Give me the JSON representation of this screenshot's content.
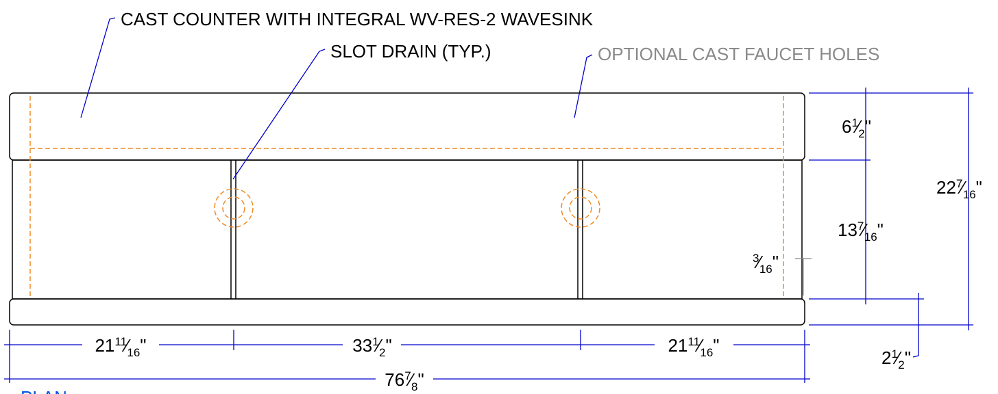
{
  "callouts": {
    "counter": "CAST COUNTER WITH INTEGRAL WV-RES-2 WAVESINK",
    "slot_drain": "SLOT DRAIN (TYP.)",
    "faucet_holes": "OPTIONAL CAST FAUCET HOLES"
  },
  "dimensions": {
    "top_band": {
      "whole": "6",
      "numerator": "1",
      "slash": "⁄",
      "denominator": "2",
      "unit": "\""
    },
    "overall_depth": {
      "whole": "22",
      "numerator": "7",
      "slash": "⁄",
      "denominator": "16",
      "unit": "\""
    },
    "basin_depth": {
      "whole": "13",
      "numerator": "7",
      "slash": "⁄",
      "denominator": "16",
      "unit": "\""
    },
    "slot_offset": {
      "whole": "",
      "numerator": "3",
      "slash": "⁄",
      "denominator": "16",
      "unit": "\""
    },
    "front_band": {
      "whole": "2",
      "numerator": "1",
      "slash": "⁄",
      "denominator": "2",
      "unit": "\""
    },
    "left_bay": {
      "whole": "21",
      "numerator": "11",
      "slash": "⁄",
      "denominator": "16",
      "unit": "\""
    },
    "center_bay": {
      "whole": "33",
      "numerator": "1",
      "slash": "⁄",
      "denominator": "2",
      "unit": "\""
    },
    "right_bay": {
      "whole": "21",
      "numerator": "11",
      "slash": "⁄",
      "denominator": "16",
      "unit": "\""
    },
    "overall_length": {
      "whole": "76",
      "numerator": "7",
      "slash": "⁄",
      "denominator": "8",
      "unit": "\""
    }
  },
  "view_label": "PLAN"
}
